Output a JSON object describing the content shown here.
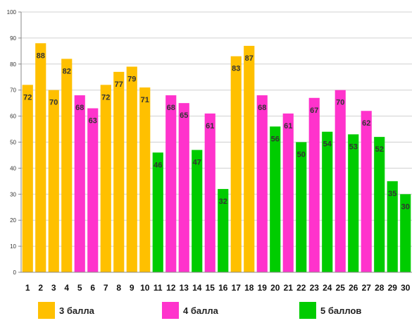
{
  "chart_data": {
    "type": "bar",
    "categories": [
      "1",
      "2",
      "3",
      "4",
      "5",
      "6",
      "7",
      "8",
      "9",
      "10",
      "11",
      "12",
      "13",
      "14",
      "15",
      "16",
      "17",
      "18",
      "19",
      "20",
      "21",
      "22",
      "23",
      "24",
      "25",
      "26",
      "27",
      "28",
      "29",
      "30"
    ],
    "values": [
      72,
      88,
      70,
      82,
      68,
      63,
      72,
      77,
      79,
      71,
      46,
      68,
      65,
      47,
      61,
      32,
      83,
      87,
      68,
      56,
      61,
      50,
      67,
      54,
      70,
      53,
      62,
      52,
      35,
      30
    ],
    "groups": [
      "3",
      "3",
      "3",
      "3",
      "4",
      "4",
      "3",
      "3",
      "3",
      "3",
      "5",
      "4",
      "4",
      "5",
      "4",
      "5",
      "3",
      "3",
      "4",
      "5",
      "4",
      "5",
      "4",
      "5",
      "4",
      "5",
      "4",
      "5",
      "5",
      "5"
    ],
    "ylim": [
      0,
      100
    ],
    "y_ticks": [
      "0",
      "10",
      "20",
      "30",
      "40",
      "50",
      "60",
      "70",
      "80",
      "90",
      "100"
    ],
    "grid": true,
    "data_labels": true,
    "legend": {
      "position": "bottom",
      "items": [
        {
          "key": "3",
          "label": "3 балла",
          "color": "#FFC000"
        },
        {
          "key": "4",
          "label": "4 балла",
          "color": "#FF33CC"
        },
        {
          "key": "5",
          "label": "5 баллов",
          "color": "#00CC00"
        }
      ]
    },
    "title": "",
    "xlabel": "",
    "ylabel": ""
  }
}
